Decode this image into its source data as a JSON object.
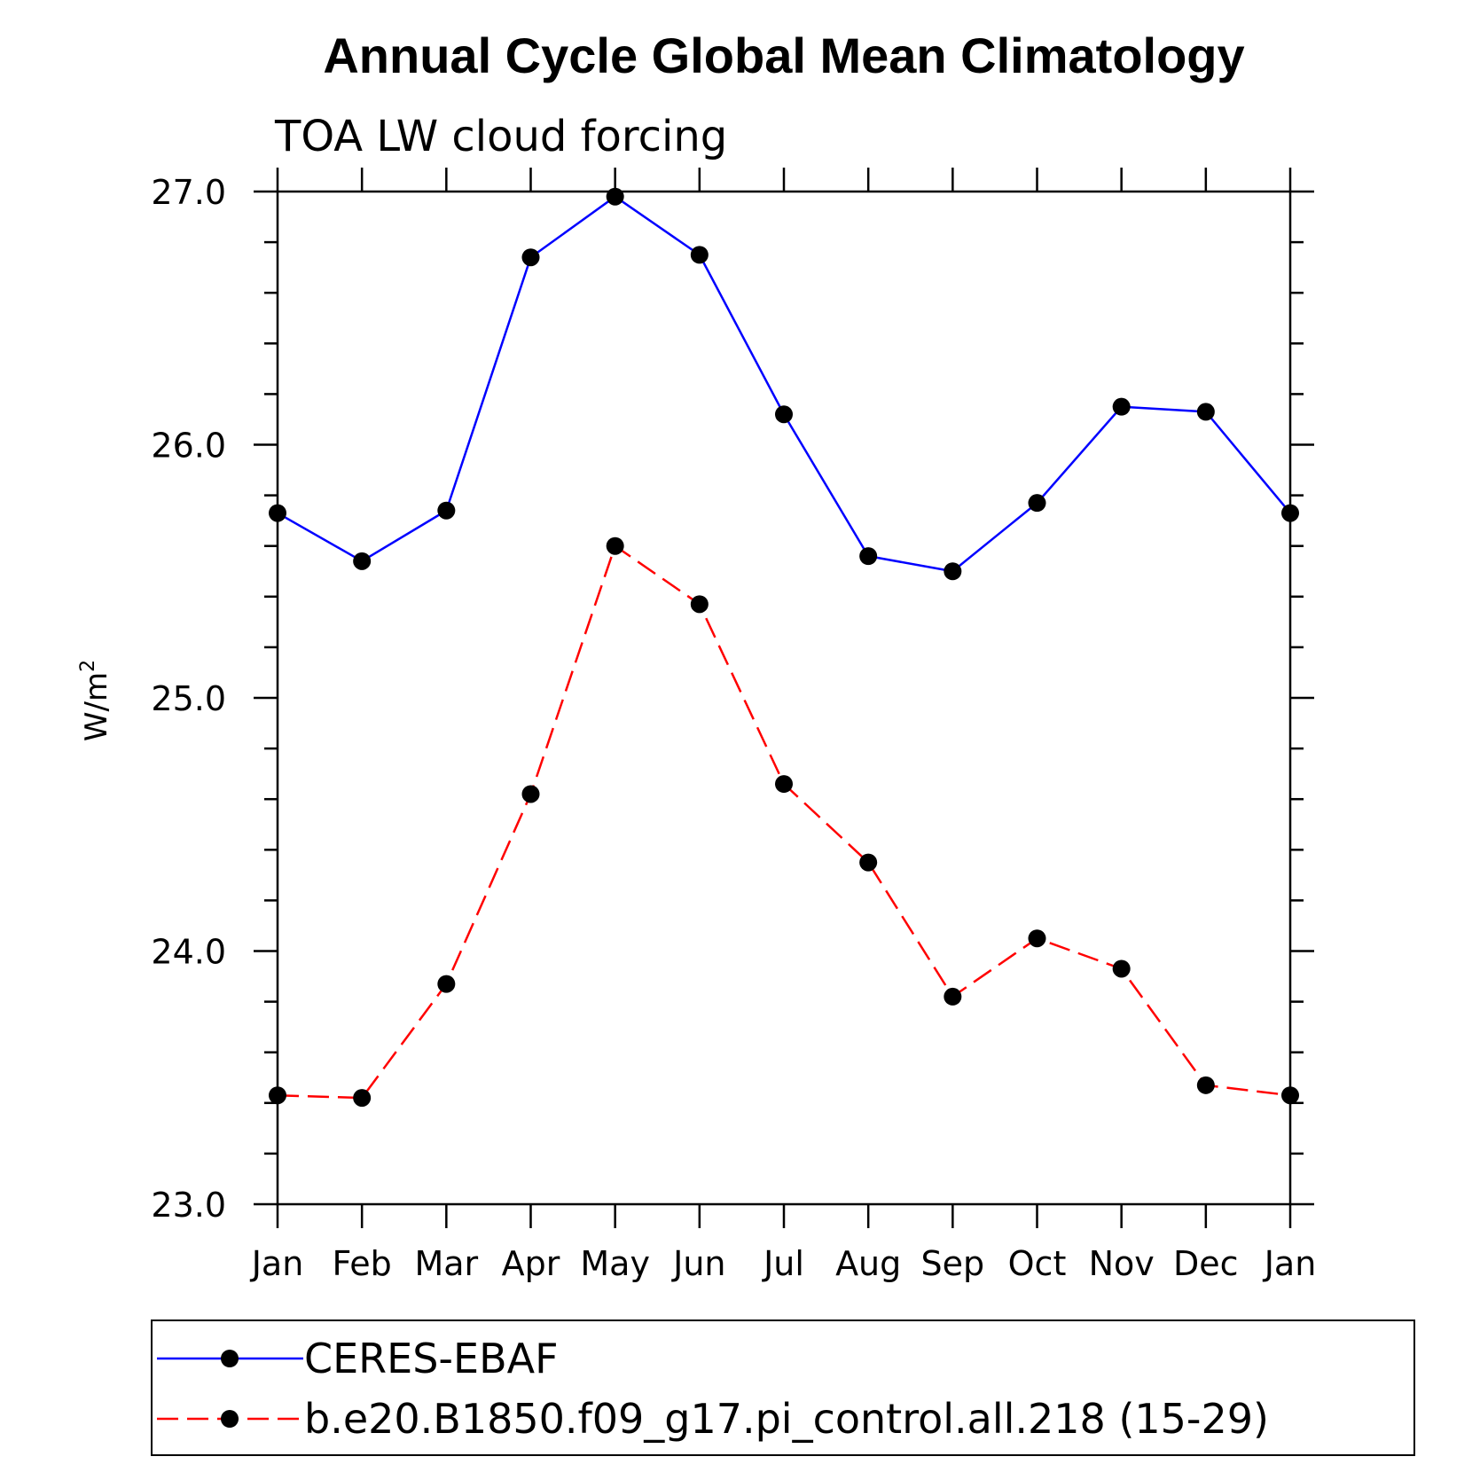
{
  "chart_data": {
    "type": "line",
    "title": "Annual Cycle Global Mean Climatology",
    "subtitle": "TOA LW cloud forcing",
    "ylabel": "W/m",
    "ylabel_superscript": "2",
    "xlabel": "",
    "categories": [
      "Jan",
      "Feb",
      "Mar",
      "Apr",
      "May",
      "Jun",
      "Jul",
      "Aug",
      "Sep",
      "Oct",
      "Nov",
      "Dec",
      "Jan"
    ],
    "ylim": [
      23.0,
      27.0
    ],
    "yticks": [
      "23.0",
      "24.0",
      "25.0",
      "26.0",
      "27.0"
    ],
    "grid": false,
    "legend_position": "bottom",
    "series": [
      {
        "name": "CERES-EBAF",
        "color": "#0000ff",
        "dash": "solid",
        "marker": "filled-circle",
        "values": [
          25.73,
          25.54,
          25.74,
          26.74,
          26.98,
          26.75,
          26.12,
          25.56,
          25.5,
          25.77,
          26.15,
          26.13,
          25.73
        ]
      },
      {
        "name": "b.e20.B1850.f09_g17.pi_control.all.218 (15-29)",
        "color": "#ff0000",
        "dash": "dashed",
        "marker": "filled-circle",
        "values": [
          23.43,
          23.42,
          23.87,
          24.62,
          25.6,
          25.37,
          24.66,
          24.35,
          23.82,
          24.05,
          23.93,
          23.47,
          23.43
        ]
      }
    ]
  }
}
